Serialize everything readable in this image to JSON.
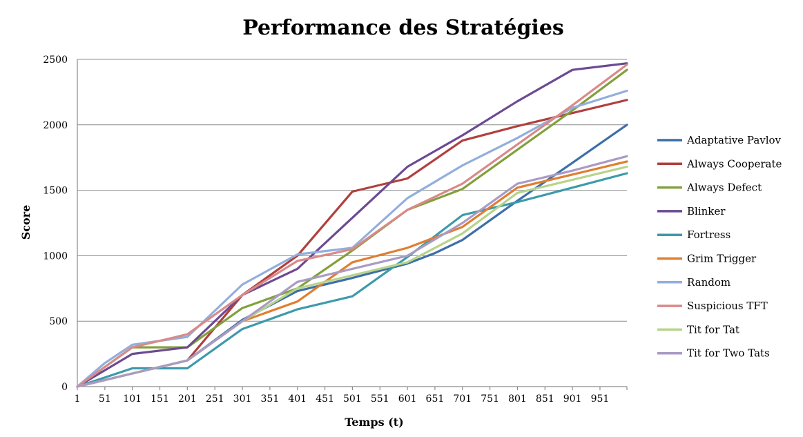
{
  "chart_data": {
    "type": "line",
    "title": "Performance des Stratégies",
    "xlabel": "Temps (t)",
    "ylabel": "Score",
    "xlim": [
      1,
      1000
    ],
    "ylim": [
      0,
      2500
    ],
    "yticks": [
      0,
      500,
      1000,
      1500,
      2000,
      2500
    ],
    "xtick_labels": [
      "1",
      "51",
      "101",
      "151",
      "201",
      "251",
      "301",
      "351",
      "401",
      "451",
      "501",
      "551",
      "601",
      "651",
      "701",
      "751",
      "801",
      "851",
      "901",
      "951"
    ],
    "xtick_values": [
      1,
      51,
      101,
      151,
      201,
      251,
      301,
      351,
      401,
      451,
      501,
      551,
      601,
      651,
      701,
      751,
      801,
      851,
      901,
      951
    ],
    "grid": "horizontal",
    "legend": "right",
    "series": [
      {
        "name": "Adaptative Pavlov",
        "color": "#3d6fa8",
        "x": [
          1,
          101,
          201,
          301,
          401,
          501,
          601,
          651,
          701,
          801,
          901,
          1000
        ],
        "y": [
          0,
          100,
          200,
          510,
          730,
          830,
          940,
          1020,
          1120,
          1420,
          1710,
          2000
        ]
      },
      {
        "name": "Always Cooperate",
        "color": "#b0403e",
        "x": [
          1,
          101,
          201,
          301,
          401,
          501,
          601,
          701,
          801,
          901,
          1000
        ],
        "y": [
          0,
          100,
          200,
          700,
          1000,
          1490,
          1590,
          1880,
          1990,
          2090,
          2190
        ]
      },
      {
        "name": "Always Defect",
        "color": "#82a03c",
        "x": [
          1,
          101,
          201,
          301,
          401,
          501,
          601,
          701,
          801,
          901,
          1000
        ],
        "y": [
          0,
          300,
          300,
          600,
          750,
          1040,
          1350,
          1510,
          1810,
          2110,
          2420
        ]
      },
      {
        "name": "Blinker",
        "color": "#6c4a92",
        "x": [
          1,
          101,
          201,
          301,
          401,
          501,
          601,
          701,
          801,
          901,
          1000
        ],
        "y": [
          0,
          250,
          300,
          700,
          900,
          1290,
          1680,
          1920,
          2180,
          2420,
          2470
        ]
      },
      {
        "name": "Fortress",
        "color": "#3d9aab",
        "x": [
          1,
          101,
          201,
          301,
          401,
          501,
          601,
          701,
          801,
          901,
          1000
        ],
        "y": [
          0,
          140,
          140,
          440,
          590,
          690,
          990,
          1310,
          1410,
          1520,
          1630
        ]
      },
      {
        "name": "Grim Trigger",
        "color": "#e07e30",
        "x": [
          1,
          101,
          201,
          301,
          401,
          501,
          601,
          701,
          801,
          901,
          1000
        ],
        "y": [
          0,
          100,
          200,
          500,
          650,
          950,
          1060,
          1220,
          1520,
          1620,
          1720
        ]
      },
      {
        "name": "Random",
        "color": "#93aedc",
        "x": [
          1,
          51,
          101,
          201,
          301,
          401,
          501,
          601,
          701,
          801,
          901,
          1000
        ],
        "y": [
          0,
          180,
          320,
          380,
          780,
          1010,
          1060,
          1440,
          1690,
          1900,
          2130,
          2260
        ]
      },
      {
        "name": "Suspicious TFT",
        "color": "#d98a88",
        "x": [
          1,
          101,
          201,
          301,
          401,
          501,
          601,
          701,
          801,
          901,
          1000
        ],
        "y": [
          0,
          300,
          400,
          700,
          960,
          1050,
          1350,
          1550,
          1850,
          2150,
          2460
        ]
      },
      {
        "name": "Tit for Tat",
        "color": "#b8d38c",
        "x": [
          1,
          101,
          201,
          301,
          401,
          501,
          601,
          701,
          801,
          901,
          1000
        ],
        "y": [
          0,
          100,
          200,
          500,
          750,
          850,
          950,
          1170,
          1480,
          1580,
          1680
        ]
      },
      {
        "name": "Tit for Two Tats",
        "color": "#a99bc3",
        "x": [
          1,
          101,
          201,
          301,
          401,
          501,
          601,
          701,
          801,
          901,
          1000
        ],
        "y": [
          0,
          100,
          200,
          500,
          800,
          900,
          1000,
          1250,
          1550,
          1650,
          1760
        ]
      }
    ]
  }
}
